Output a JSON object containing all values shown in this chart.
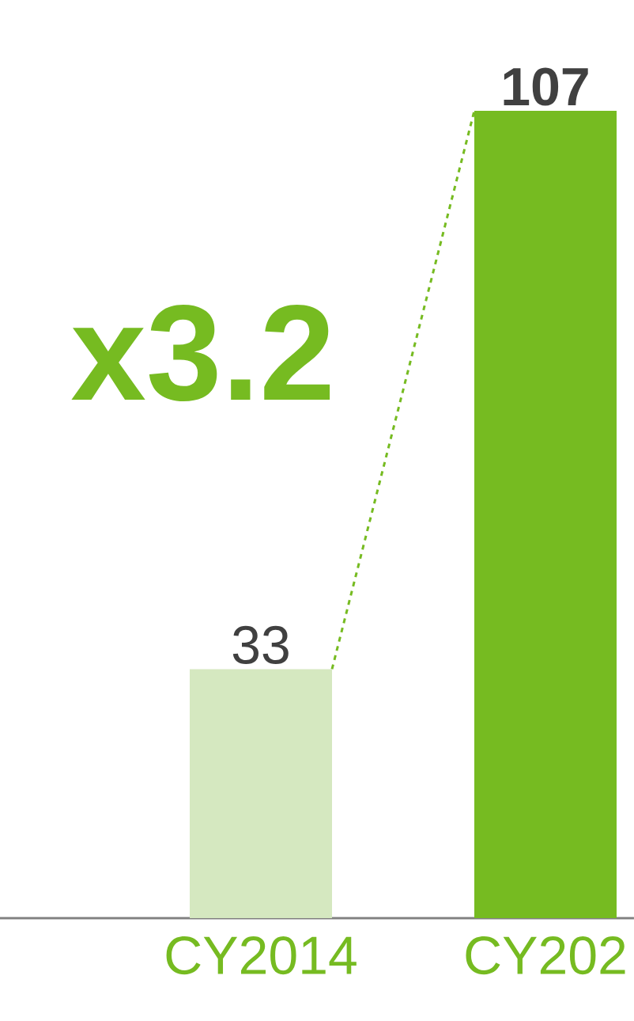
{
  "chart_data": {
    "type": "bar",
    "categories": [
      "CY2014",
      "CY202"
    ],
    "values": [
      33,
      107
    ],
    "colors": [
      "#d5e8c0",
      "#76bb21"
    ],
    "value_labels": [
      "33",
      "**107**"
    ],
    "ylim": [
      0,
      107
    ],
    "annotations": [
      "x3.2"
    ]
  }
}
